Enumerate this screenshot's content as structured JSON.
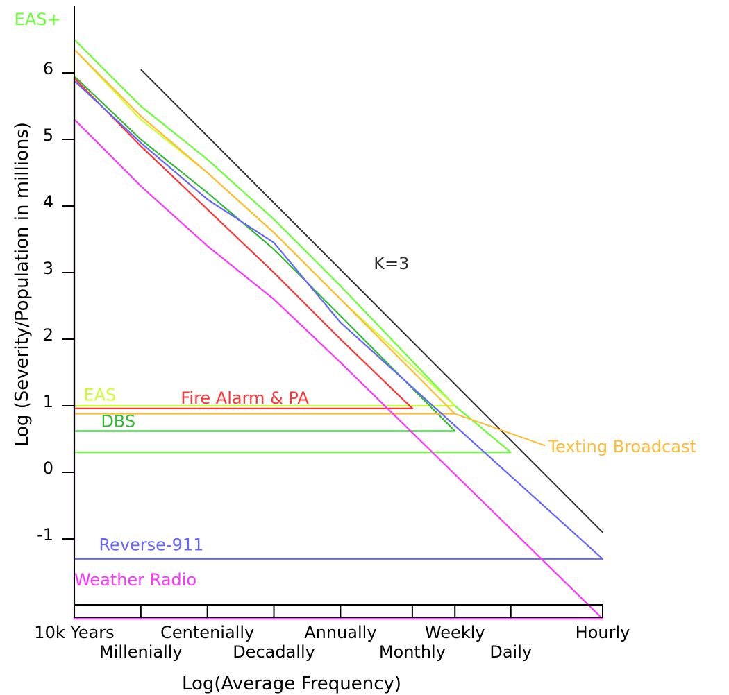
{
  "chart_data": {
    "type": "line",
    "title": "",
    "xlabel": "Log(Average Frequency)",
    "ylabel": "Log (Severity/Population in millions)",
    "x_ticks": [
      {
        "label": "10k  Years",
        "value": -4.0,
        "row": 1
      },
      {
        "label": "Millenially",
        "value": -3.0,
        "row": 2
      },
      {
        "label": "Centenially",
        "value": -2.0,
        "row": 1
      },
      {
        "label": "Decadally",
        "value": -1.0,
        "row": 2
      },
      {
        "label": "Annually",
        "value": 0.0,
        "row": 1
      },
      {
        "label": "Monthly",
        "value": 1.08,
        "row": 2
      },
      {
        "label": "Weekly",
        "value": 1.72,
        "row": 1
      },
      {
        "label": "Daily",
        "value": 2.56,
        "row": 2
      },
      {
        "label": "Hourly",
        "value": 3.94,
        "row": 1
      }
    ],
    "y_ticks": [
      {
        "label": "6",
        "value": 6
      },
      {
        "label": "5",
        "value": 5
      },
      {
        "label": "4",
        "value": 4
      },
      {
        "label": "3",
        "value": 3
      },
      {
        "label": "2",
        "value": 2
      },
      {
        "label": "1",
        "value": 1
      },
      {
        "label": "0",
        "value": 0
      },
      {
        "label": "-1",
        "value": -1
      }
    ],
    "xlim": [
      -4.0,
      3.94
    ],
    "ylim": [
      -2.2,
      7.1
    ],
    "grid": false,
    "reference_line": {
      "name": "K=3",
      "color": "#333333",
      "points": [
        [
          -3.0,
          6.05
        ],
        [
          3.94,
          -0.9
        ]
      ]
    },
    "series": [
      {
        "name": "EAS+",
        "color": "#66ff33",
        "points": [
          [
            -4.0,
            6.5
          ],
          [
            -3.0,
            5.5
          ],
          [
            -2.0,
            4.7
          ],
          [
            -1.0,
            3.8
          ],
          [
            0.0,
            2.8
          ],
          [
            1.72,
            1.0
          ],
          [
            2.56,
            0.3
          ],
          [
            -4.0,
            0.3
          ],
          [
            -4.0,
            6.5
          ]
        ]
      },
      {
        "name": "EAS",
        "color": "#ccff33",
        "points": [
          [
            -4.0,
            6.35
          ],
          [
            -3.0,
            5.3
          ],
          [
            -2.0,
            4.5
          ],
          [
            -1.0,
            3.6
          ],
          [
            0.0,
            2.6
          ],
          [
            1.72,
            1.0
          ],
          [
            -4.0,
            1.0
          ],
          [
            -4.0,
            6.35
          ]
        ]
      },
      {
        "name": "DBS",
        "color": "#33bb33",
        "points": [
          [
            -4.0,
            5.95
          ],
          [
            -3.0,
            5.0
          ],
          [
            -2.0,
            4.2
          ],
          [
            -1.0,
            3.35
          ],
          [
            0.0,
            2.35
          ],
          [
            1.72,
            0.62
          ],
          [
            -4.0,
            0.62
          ],
          [
            -4.0,
            5.95
          ]
        ]
      },
      {
        "name": "Fire  Alarm  &  PA",
        "color": "#ff3333",
        "points": [
          [
            -4.0,
            5.92
          ],
          [
            -3.0,
            4.9
          ],
          [
            -2.0,
            3.95
          ],
          [
            -1.0,
            3.0
          ],
          [
            0.0,
            2.0
          ],
          [
            1.08,
            0.96
          ],
          [
            -4.0,
            0.96
          ],
          [
            -4.0,
            5.92
          ]
        ]
      },
      {
        "name": "Texting  Broadcast",
        "color": "#ffbb33",
        "points": [
          [
            -4.0,
            0.88
          ],
          [
            -4.0,
            6.35
          ],
          [
            -3.0,
            5.35
          ],
          [
            -2.0,
            4.5
          ],
          [
            -1.0,
            3.6
          ],
          [
            0.0,
            2.6
          ],
          [
            1.72,
            0.88
          ],
          [
            -4.0,
            0.88
          ]
        ]
      },
      {
        "name": "Reverse-911",
        "color": "#6666ff",
        "points": [
          [
            -4.0,
            5.88
          ],
          [
            -3.0,
            4.95
          ],
          [
            -2.0,
            4.1
          ],
          [
            -1.0,
            3.45
          ],
          [
            0.0,
            2.25
          ],
          [
            3.94,
            -1.3
          ],
          [
            -4.0,
            -1.3
          ],
          [
            -4.0,
            5.88
          ]
        ]
      },
      {
        "name": "Weather  Radio",
        "color": "#ff33ff",
        "points": [
          [
            -4.0,
            5.3
          ],
          [
            -3.0,
            4.3
          ],
          [
            -2.0,
            3.4
          ],
          [
            -1.0,
            2.6
          ],
          [
            0.0,
            1.65
          ],
          [
            3.94,
            -2.2
          ],
          [
            -4.0,
            -2.2
          ],
          [
            -4.0,
            5.3
          ]
        ]
      }
    ],
    "labels": [
      {
        "text": "EAS+",
        "color": "#66ff33",
        "at": [
          -4.9,
          6.72
        ]
      },
      {
        "text": "EAS",
        "color": "#ccff33",
        "at": [
          -3.86,
          1.08
        ]
      },
      {
        "text": "Fire  Alarm  &  PA",
        "color": "#ff3333",
        "at": [
          -2.4,
          1.03
        ]
      },
      {
        "text": "DBS",
        "color": "#33bb33",
        "at": [
          -3.6,
          0.68
        ]
      },
      {
        "text": "Texting  Broadcast",
        "color": "#ffbb33",
        "at": [
          3.12,
          0.3
        ]
      },
      {
        "text": "K=3",
        "color": "#333333",
        "at": [
          0.5,
          3.05
        ]
      },
      {
        "text": "Reverse-911",
        "color": "#6666ff",
        "at": [
          -3.63,
          -1.17
        ]
      },
      {
        "text": "Weather  Radio",
        "color": "#ff33ff",
        "at": [
          -4.0,
          -1.7
        ]
      }
    ],
    "callout": {
      "series": "Texting  Broadcast",
      "color": "#ffbb33",
      "from": [
        1.72,
        0.88
      ],
      "to": [
        3.12,
        0.35
      ]
    }
  }
}
